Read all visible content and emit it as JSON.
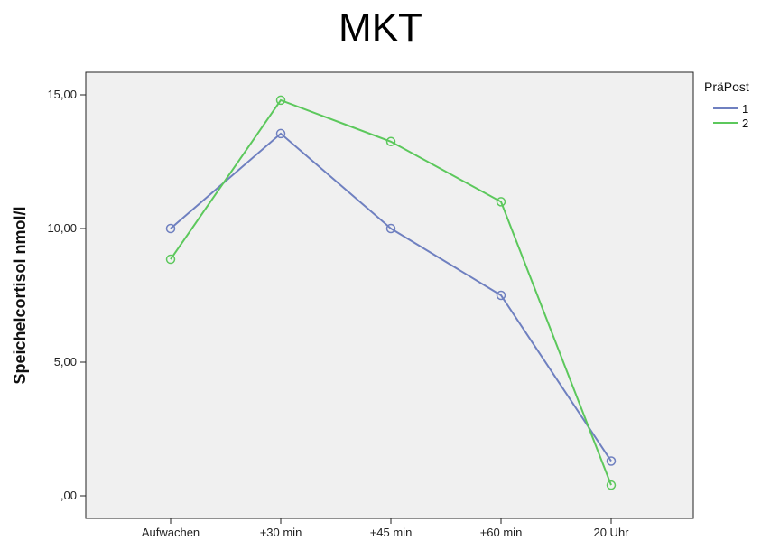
{
  "chart_data": {
    "type": "line",
    "title": "MKT",
    "xlabel": "",
    "ylabel": "Speichelcortisol nmol/l",
    "categories": [
      "Aufwachen",
      "+30 min",
      "+45 min",
      "+60 min",
      "20 Uhr"
    ],
    "ylim": [
      0,
      16.5
    ],
    "yticks": [
      0,
      5,
      10,
      15
    ],
    "ytick_labels": [
      ",00",
      "5,00",
      "10,00",
      "15,00"
    ],
    "grid": false,
    "legend": {
      "title": "PräPost",
      "placement": "right"
    },
    "series": [
      {
        "name": "1",
        "color": "#6f80c0",
        "values": [
          10.0,
          13.55,
          10.0,
          7.5,
          1.3
        ]
      },
      {
        "name": "2",
        "color": "#5cc85c",
        "values": [
          8.85,
          14.8,
          13.25,
          11.0,
          0.4
        ]
      }
    ]
  }
}
